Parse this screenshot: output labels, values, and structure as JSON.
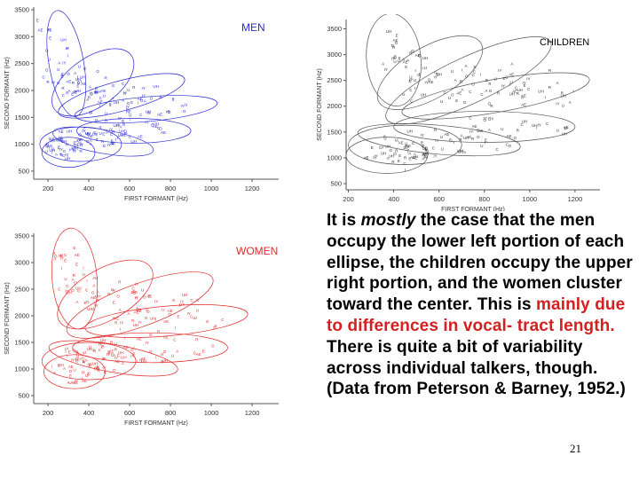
{
  "chart_data": [
    {
      "type": "scatter",
      "title": "MEN",
      "xlabel": "FIRST FORMANT (Hz)",
      "ylabel": "SECOND FORMANT (Hz)",
      "xlim": [
        130,
        1330
      ],
      "ylim": [
        350,
        3550
      ],
      "xticks": [
        200,
        400,
        600,
        800,
        1000,
        1200
      ],
      "yticks": [
        500,
        1000,
        1500,
        2000,
        2500,
        3000,
        3500
      ],
      "colors": {
        "points": "#2a2ad0",
        "ellipses": "#2a2ad0",
        "title": "#2a2ad0"
      },
      "ellipses": [
        {
          "cx": 290,
          "cy": 2500,
          "rx": 85,
          "ry": 1000,
          "angle": 10
        },
        {
          "cx": 420,
          "cy": 2150,
          "rx": 230,
          "ry": 460,
          "angle": 35
        },
        {
          "cx": 560,
          "cy": 1900,
          "rx": 320,
          "ry": 280,
          "angle": 15
        },
        {
          "cx": 680,
          "cy": 1650,
          "rx": 350,
          "ry": 230,
          "angle": 5
        },
        {
          "cx": 620,
          "cy": 1250,
          "rx": 280,
          "ry": 230,
          "angle": 0
        },
        {
          "cx": 470,
          "cy": 1050,
          "rx": 250,
          "ry": 220,
          "angle": -10
        },
        {
          "cx": 360,
          "cy": 1000,
          "rx": 200,
          "ry": 320,
          "angle": 0
        },
        {
          "cx": 300,
          "cy": 850,
          "rx": 130,
          "ry": 280,
          "angle": 0
        }
      ]
    },
    {
      "type": "scatter",
      "title": "CHILDREN",
      "xlabel": "FIRST FORMANT (Hz)",
      "ylabel": "SECOND FORMANT (Hz)",
      "xlim": [
        190,
        1310
      ],
      "ylim": [
        380,
        3680
      ],
      "xticks": [
        200,
        400,
        600,
        800,
        1000,
        1200
      ],
      "yticks": [
        500,
        1000,
        1500,
        2000,
        2500,
        3000,
        3500
      ],
      "colors": {
        "points": "#333333",
        "ellipses": "#555555",
        "title": "#000000"
      },
      "ellipses": [
        {
          "cx": 400,
          "cy": 2900,
          "rx": 120,
          "ry": 900,
          "angle": 5
        },
        {
          "cx": 560,
          "cy": 2650,
          "rx": 260,
          "ry": 500,
          "angle": 30
        },
        {
          "cx": 730,
          "cy": 2500,
          "rx": 400,
          "ry": 450,
          "angle": 25
        },
        {
          "cx": 850,
          "cy": 2200,
          "rx": 420,
          "ry": 320,
          "angle": 10
        },
        {
          "cx": 800,
          "cy": 1600,
          "rx": 400,
          "ry": 300,
          "angle": 0
        },
        {
          "cx": 600,
          "cy": 1350,
          "rx": 360,
          "ry": 280,
          "angle": -5
        },
        {
          "cx": 450,
          "cy": 1250,
          "rx": 250,
          "ry": 380,
          "angle": 0
        },
        {
          "cx": 370,
          "cy": 1050,
          "rx": 180,
          "ry": 350,
          "angle": 0
        }
      ]
    },
    {
      "type": "scatter",
      "title": "WOMEN",
      "xlabel": "FIRST FORMANT (Hz)",
      "ylabel": "SECOND FORMANT (Hz)",
      "xlim": [
        130,
        1330
      ],
      "ylim": [
        350,
        3550
      ],
      "xticks": [
        200,
        400,
        600,
        800,
        1000,
        1200
      ],
      "yticks": [
        500,
        1000,
        1500,
        2000,
        2500,
        3000,
        3500
      ],
      "colors": {
        "points": "#e02828",
        "ellipses": "#e02828",
        "title": "#e02828"
      },
      "ellipses": [
        {
          "cx": 330,
          "cy": 2700,
          "rx": 110,
          "ry": 950,
          "angle": 5
        },
        {
          "cx": 480,
          "cy": 2400,
          "rx": 260,
          "ry": 480,
          "angle": 30
        },
        {
          "cx": 650,
          "cy": 2200,
          "rx": 380,
          "ry": 400,
          "angle": 20
        },
        {
          "cx": 780,
          "cy": 1900,
          "rx": 400,
          "ry": 280,
          "angle": 5
        },
        {
          "cx": 700,
          "cy": 1400,
          "rx": 380,
          "ry": 280,
          "angle": 0
        },
        {
          "cx": 520,
          "cy": 1200,
          "rx": 320,
          "ry": 260,
          "angle": -10
        },
        {
          "cx": 400,
          "cy": 1150,
          "rx": 230,
          "ry": 350,
          "angle": 0
        },
        {
          "cx": 330,
          "cy": 950,
          "rx": 150,
          "ry": 320,
          "angle": 0
        }
      ]
    }
  ],
  "caption": {
    "p1": "It is ",
    "p2": "mostly",
    "p3": " the case that the men occupy the lower left portion of each ellipse, the children occupy the upper right portion, and the women cluster toward the center. This is ",
    "p4": "mainly due to differences in vocal- tract length.",
    "p5": " There is quite a bit of variability across individual talkers, though. (Data from Peterson & Barney, 1952.)",
    "highlight_color": "#d42020"
  },
  "page_number": "21"
}
